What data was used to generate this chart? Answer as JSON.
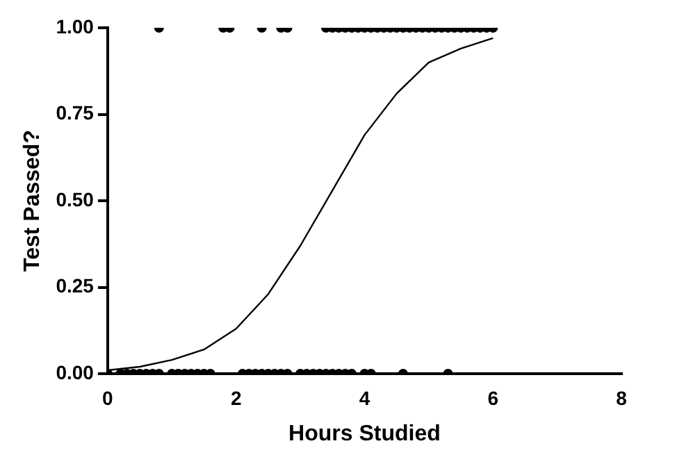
{
  "chart_data": {
    "type": "scatter",
    "xlabel": "Hours Studied",
    "ylabel": "Test Passed?",
    "xlim": [
      0,
      8
    ],
    "xticks": [
      0,
      2,
      4,
      6,
      8
    ],
    "ylim": [
      0,
      1
    ],
    "yticks": [
      {
        "value": 0,
        "label": "0.00"
      },
      {
        "value": 0.25,
        "label": "0.25"
      },
      {
        "value": 0.5,
        "label": "0.50"
      },
      {
        "value": 0.75,
        "label": "0.75"
      },
      {
        "value": 1,
        "label": "1.00"
      }
    ],
    "grid": false,
    "legend": false,
    "marker": "circle",
    "series": [
      {
        "color": "#000000",
        "x": [
          0.8,
          1.8,
          1.9,
          2.4,
          2.7,
          2.8,
          3.4,
          3.5,
          3.6,
          3.7,
          3.8,
          3.9,
          4.0,
          4.1,
          4.2,
          4.3,
          4.4,
          4.5,
          4.6,
          4.7,
          4.8,
          4.9,
          5.0,
          5.1,
          5.2,
          5.3,
          5.4,
          5.5,
          5.6,
          5.7,
          5.8,
          5.9,
          6.0
        ],
        "values": [
          1,
          1,
          1,
          1,
          1,
          1,
          1,
          1,
          1,
          1,
          1,
          1,
          1,
          1,
          1,
          1,
          1,
          1,
          1,
          1,
          1,
          1,
          1,
          1,
          1,
          1,
          1,
          1,
          1,
          1,
          1,
          1,
          1
        ]
      },
      {
        "color": "#000000",
        "x": [
          0,
          0.2,
          0.3,
          0.4,
          0.5,
          0.6,
          0.7,
          0.8,
          1.0,
          1.1,
          1.2,
          1.3,
          1.4,
          1.5,
          1.6,
          2.1,
          2.2,
          2.3,
          2.4,
          2.5,
          2.6,
          2.7,
          2.8,
          3.0,
          3.1,
          3.2,
          3.3,
          3.4,
          3.5,
          3.6,
          3.7,
          3.8,
          4.0,
          4.1,
          4.6,
          5.3
        ],
        "values": [
          0,
          0,
          0,
          0,
          0,
          0,
          0,
          0,
          0,
          0,
          0,
          0,
          0,
          0,
          0,
          0,
          0,
          0,
          0,
          0,
          0,
          0,
          0,
          0,
          0,
          0,
          0,
          0,
          0,
          0,
          0,
          0,
          0,
          0,
          0,
          0
        ]
      },
      {
        "type": "line",
        "color": "#000000",
        "marker": "none",
        "line_style": "solid",
        "x": [
          0,
          0.5,
          1,
          1.5,
          2,
          2.5,
          3,
          3.5,
          4,
          4.5,
          5,
          5.5,
          6
        ],
        "values": [
          0.01,
          0.02,
          0.04,
          0.07,
          0.13,
          0.23,
          0.37,
          0.53,
          0.69,
          0.81,
          0.9,
          0.94,
          0.97
        ]
      }
    ]
  }
}
